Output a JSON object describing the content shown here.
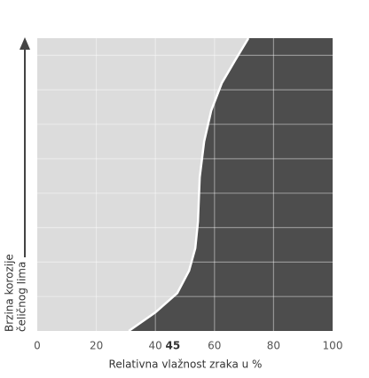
{
  "chart_data": {
    "type": "area",
    "xlabel": "Relativna vlažnost zraka u %",
    "ylabel": [
      "Brzina korozije",
      "čeličnog lima"
    ],
    "x": [
      31,
      40,
      47.4,
      51.4,
      53.5,
      54.4,
      55,
      56.5,
      58.9,
      62.5,
      67,
      71.5
    ],
    "values": [
      0,
      0.54,
      1.1,
      1.75,
      2.4,
      3.17,
      4.46,
      5.5,
      6.4,
      7.2,
      7.86,
      8.5
    ],
    "xlim": [
      0,
      100
    ],
    "xticks": [
      0,
      20,
      40,
      60,
      80,
      100
    ],
    "highlight_xtick": 45,
    "ylim": [
      0,
      8.5
    ],
    "yticks": [
      1,
      2,
      3,
      4,
      5,
      6,
      7,
      8
    ],
    "show_ytick_labels": false,
    "grid": true,
    "background_color": "#dcdcdc",
    "color": "#4d4d4d",
    "line_color": "#ffffff"
  }
}
